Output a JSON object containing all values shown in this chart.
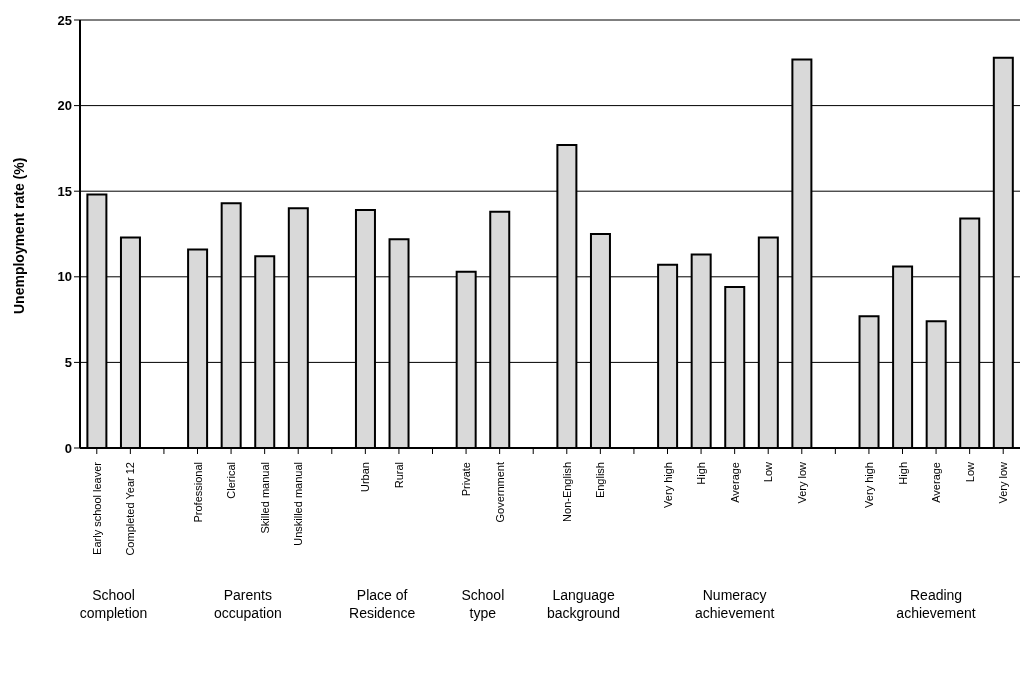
{
  "chart_data": {
    "type": "bar",
    "ylabel": "Unemployment rate (%)",
    "categories": [
      "Early school leaver",
      "Completed Year 12",
      null,
      "Professional",
      "Clerical",
      "Skilled manual",
      "Unskilled manual",
      null,
      "Urban",
      "Rural",
      null,
      "Private",
      "Government",
      null,
      "Non-English",
      "English",
      null,
      "Very high",
      "High",
      "Average",
      "Low",
      "Very low",
      null,
      "Very high",
      "High",
      "Average",
      "Low",
      "Very low"
    ],
    "values": [
      14.8,
      12.3,
      null,
      11.6,
      14.3,
      11.2,
      14.0,
      null,
      13.9,
      12.2,
      null,
      10.3,
      13.8,
      null,
      17.7,
      12.5,
      null,
      10.7,
      11.3,
      9.4,
      12.3,
      22.7,
      null,
      7.7,
      10.6,
      7.4,
      13.4,
      22.8
    ],
    "color": "#d9d9d9",
    "ylim": [
      0,
      25
    ],
    "yticks": [
      0,
      5,
      10,
      15,
      20,
      25
    ],
    "grid": "y",
    "legend": false,
    "annotations": [
      "School completion",
      "Parents occupation",
      "Place of Residence",
      "School type",
      "Language background",
      "Numeracy achievement",
      "Reading achievement"
    ]
  }
}
